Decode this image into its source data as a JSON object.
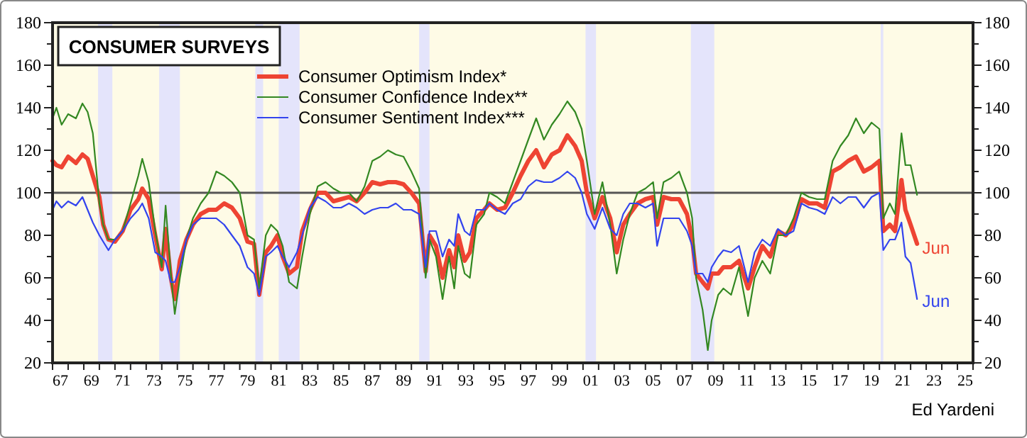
{
  "chart_data": {
    "type": "line",
    "title": "CONSUMER SURVEYS",
    "x": [
      "1967-01",
      "1967-04",
      "1967-08",
      "1968-01",
      "1968-07",
      "1968-12",
      "1969-04",
      "1969-08",
      "1970-01",
      "1970-04",
      "1970-08",
      "1971-01",
      "1971-07",
      "1972-01",
      "1972-07",
      "1972-10",
      "1973-03",
      "1973-08",
      "1974-01",
      "1974-04",
      "1974-08",
      "1974-11",
      "1975-03",
      "1975-08",
      "1976-01",
      "1976-07",
      "1977-01",
      "1977-07",
      "1978-01",
      "1978-07",
      "1979-01",
      "1979-07",
      "1979-12",
      "1980-04",
      "1980-09",
      "1981-01",
      "1981-06",
      "1981-10",
      "1982-03",
      "1982-09",
      "1983-01",
      "1983-07",
      "1984-01",
      "1984-07",
      "1985-01",
      "1985-07",
      "1986-01",
      "1986-07",
      "1987-01",
      "1987-07",
      "1988-01",
      "1988-07",
      "1989-01",
      "1989-07",
      "1990-01",
      "1990-07",
      "1990-12",
      "1991-03",
      "1991-08",
      "1992-01",
      "1992-06",
      "1992-10",
      "1993-01",
      "1993-06",
      "1993-10",
      "1994-03",
      "1994-09",
      "1995-01",
      "1995-07",
      "1996-01",
      "1996-07",
      "1997-01",
      "1997-07",
      "1998-01",
      "1998-07",
      "1999-01",
      "1999-07",
      "2000-01",
      "2000-07",
      "2000-12",
      "2001-04",
      "2001-10",
      "2002-04",
      "2002-10",
      "2003-03",
      "2003-08",
      "2004-01",
      "2004-07",
      "2005-01",
      "2005-07",
      "2005-10",
      "2006-03",
      "2006-09",
      "2007-03",
      "2007-09",
      "2008-01",
      "2008-04",
      "2008-09",
      "2009-01",
      "2009-04",
      "2009-09",
      "2010-01",
      "2010-07",
      "2011-01",
      "2011-08",
      "2012-01",
      "2012-07",
      "2013-01",
      "2013-07",
      "2014-01",
      "2014-07",
      "2015-01",
      "2015-07",
      "2016-01",
      "2016-07",
      "2017-01",
      "2017-07",
      "2018-01",
      "2018-07",
      "2019-01",
      "2019-07",
      "2020-01",
      "2020-04",
      "2020-09",
      "2021-01",
      "2021-06",
      "2021-09",
      "2022-01",
      "2022-06"
    ],
    "series": [
      {
        "name": "Consumer Optimism Index*",
        "color": "#ee4433",
        "values": [
          115,
          113,
          112,
          117,
          114,
          118,
          116,
          108,
          98,
          85,
          78,
          77,
          82,
          92,
          97,
          102,
          97,
          80,
          64,
          83,
          60,
          50,
          68,
          78,
          85,
          90,
          92,
          92,
          95,
          93,
          88,
          77,
          76,
          52,
          72,
          75,
          80,
          70,
          62,
          65,
          82,
          92,
          100,
          100,
          96,
          97,
          98,
          96,
          100,
          105,
          104,
          105,
          105,
          104,
          100,
          95,
          63,
          80,
          75,
          60,
          73,
          65,
          80,
          68,
          72,
          88,
          92,
          95,
          92,
          93,
          100,
          108,
          115,
          120,
          112,
          118,
          120,
          127,
          122,
          115,
          100,
          88,
          98,
          88,
          72,
          85,
          90,
          95,
          97,
          98,
          85,
          98,
          97,
          97,
          90,
          78,
          62,
          58,
          55,
          62,
          62,
          65,
          65,
          68,
          55,
          65,
          75,
          70,
          82,
          80,
          85,
          97,
          95,
          95,
          93,
          110,
          112,
          115,
          117,
          110,
          112,
          115,
          82,
          85,
          82,
          106,
          92,
          85,
          76
        ]
      },
      {
        "name": "Consumer Confidence Index**",
        "color": "#338822",
        "values": [
          135,
          140,
          132,
          137,
          135,
          142,
          138,
          128,
          95,
          85,
          78,
          78,
          82,
          95,
          108,
          116,
          105,
          82,
          65,
          94,
          62,
          43,
          60,
          78,
          88,
          95,
          100,
          110,
          108,
          105,
          100,
          80,
          78,
          55,
          80,
          85,
          82,
          75,
          58,
          55,
          70,
          90,
          103,
          105,
          102,
          100,
          100,
          96,
          103,
          115,
          117,
          120,
          118,
          117,
          110,
          102,
          60,
          78,
          70,
          50,
          70,
          55,
          75,
          62,
          60,
          85,
          90,
          100,
          98,
          95,
          105,
          115,
          125,
          135,
          125,
          132,
          137,
          143,
          138,
          130,
          115,
          90,
          105,
          85,
          62,
          78,
          90,
          100,
          102,
          105,
          88,
          105,
          107,
          110,
          100,
          88,
          60,
          45,
          26,
          40,
          52,
          55,
          52,
          65,
          42,
          60,
          68,
          62,
          80,
          80,
          88,
          100,
          98,
          97,
          97,
          115,
          122,
          127,
          135,
          128,
          133,
          130,
          88,
          95,
          90,
          128,
          113,
          113,
          99
        ]
      },
      {
        "name": "Consumer Sentiment Index***",
        "color": "#3344ee",
        "values": [
          92,
          96,
          93,
          96,
          94,
          98,
          92,
          86,
          80,
          77,
          73,
          78,
          82,
          88,
          92,
          95,
          88,
          72,
          70,
          68,
          58,
          58,
          65,
          78,
          85,
          88,
          88,
          88,
          85,
          80,
          75,
          65,
          62,
          52,
          70,
          72,
          75,
          70,
          65,
          72,
          80,
          93,
          98,
          96,
          93,
          93,
          95,
          93,
          90,
          92,
          93,
          93,
          95,
          92,
          92,
          90,
          65,
          82,
          82,
          70,
          78,
          75,
          90,
          82,
          80,
          92,
          92,
          95,
          92,
          90,
          95,
          97,
          103,
          106,
          105,
          105,
          107,
          110,
          107,
          100,
          90,
          83,
          93,
          83,
          80,
          90,
          95,
          95,
          93,
          95,
          75,
          88,
          88,
          88,
          82,
          75,
          62,
          62,
          58,
          65,
          70,
          73,
          72,
          75,
          58,
          72,
          78,
          75,
          83,
          80,
          82,
          95,
          93,
          92,
          90,
          98,
          95,
          98,
          98,
          93,
          98,
          100,
          73,
          78,
          78,
          86,
          70,
          67,
          50
        ]
      }
    ],
    "xlim": [
      "1967-01-01",
      "2026-01-01"
    ],
    "xticks": [
      {
        "value": "1967-07-01",
        "label": "67"
      },
      {
        "value": "1969-07-01",
        "label": "69"
      },
      {
        "value": "1971-07-01",
        "label": "71"
      },
      {
        "value": "1973-07-01",
        "label": "73"
      },
      {
        "value": "1975-07-01",
        "label": "75"
      },
      {
        "value": "1977-07-01",
        "label": "77"
      },
      {
        "value": "1979-07-01",
        "label": "79"
      },
      {
        "value": "1981-07-01",
        "label": "81"
      },
      {
        "value": "1983-07-01",
        "label": "83"
      },
      {
        "value": "1985-07-01",
        "label": "85"
      },
      {
        "value": "1987-07-01",
        "label": "87"
      },
      {
        "value": "1989-07-01",
        "label": "89"
      },
      {
        "value": "1991-07-01",
        "label": "91"
      },
      {
        "value": "1993-07-01",
        "label": "93"
      },
      {
        "value": "1995-07-01",
        "label": "95"
      },
      {
        "value": "1997-07-01",
        "label": "97"
      },
      {
        "value": "1999-07-01",
        "label": "99"
      },
      {
        "value": "2001-07-01",
        "label": "01"
      },
      {
        "value": "2003-07-01",
        "label": "03"
      },
      {
        "value": "2005-07-01",
        "label": "05"
      },
      {
        "value": "2007-07-01",
        "label": "07"
      },
      {
        "value": "2009-07-01",
        "label": "09"
      },
      {
        "value": "2011-07-01",
        "label": "11"
      },
      {
        "value": "2013-07-01",
        "label": "13"
      },
      {
        "value": "2015-07-01",
        "label": "15"
      },
      {
        "value": "2017-07-01",
        "label": "17"
      },
      {
        "value": "2019-07-01",
        "label": "19"
      },
      {
        "value": "2021-07-01",
        "label": "21"
      },
      {
        "value": "2023-07-01",
        "label": "23"
      },
      {
        "value": "2025-07-01",
        "label": "25"
      }
    ],
    "ylim": [
      20,
      180
    ],
    "yticks": [
      20,
      {
        "value": 30,
        "label": null
      },
      40,
      {
        "value": 50,
        "label": null
      },
      60,
      {
        "value": 70,
        "label": null
      },
      80,
      {
        "value": 90,
        "label": null
      },
      100,
      {
        "value": 110,
        "label": null
      },
      120,
      {
        "value": 130,
        "label": null
      },
      140,
      {
        "value": 150,
        "label": null
      },
      160,
      {
        "value": 170,
        "label": null
      },
      180
    ],
    "y2lim": [
      20,
      180
    ],
    "y2ticks": [
      20,
      {
        "value": 30,
        "label": null
      },
      40,
      {
        "value": 50,
        "label": null
      },
      60,
      {
        "value": 70,
        "label": null
      },
      80,
      {
        "value": 90,
        "label": null
      },
      100,
      {
        "value": 110,
        "label": null
      },
      120,
      {
        "value": 130,
        "label": null
      },
      140,
      {
        "value": 150,
        "label": null
      },
      160,
      {
        "value": 170,
        "label": null
      },
      180
    ],
    "ref_lines": [
      {
        "axis": "y",
        "value": 100,
        "label": null,
        "color": "#555555"
      }
    ],
    "bands": [
      {
        "axis": "x",
        "from": "1969-12",
        "to": "1970-11",
        "label": null,
        "color": "#e4e4fb"
      },
      {
        "axis": "x",
        "from": "1973-11",
        "to": "1975-03",
        "label": null,
        "color": "#e4e4fb"
      },
      {
        "axis": "x",
        "from": "1980-01",
        "to": "1980-07",
        "label": null,
        "color": "#e4e4fb"
      },
      {
        "axis": "x",
        "from": "1981-07",
        "to": "1982-11",
        "label": null,
        "color": "#e4e4fb"
      },
      {
        "axis": "x",
        "from": "1990-07",
        "to": "1991-03",
        "label": null,
        "color": "#e4e4fb"
      },
      {
        "axis": "x",
        "from": "2001-03",
        "to": "2001-11",
        "label": null,
        "color": "#e4e4fb"
      },
      {
        "axis": "x",
        "from": "2007-12",
        "to": "2009-06",
        "label": null,
        "color": "#e4e4fb"
      },
      {
        "axis": "x",
        "from": "2020-02",
        "to": "2020-04",
        "label": null,
        "color": "#e4e4fb"
      }
    ],
    "annotations": [
      {
        "text": "Jun",
        "x": "2022-10",
        "y": 74
      },
      {
        "text": "Jun",
        "x": "2022-10",
        "y": 49
      },
      "Ed Yardeni"
    ],
    "legend": "top",
    "grid": false,
    "marker": "none",
    "line_style": "solid"
  }
}
